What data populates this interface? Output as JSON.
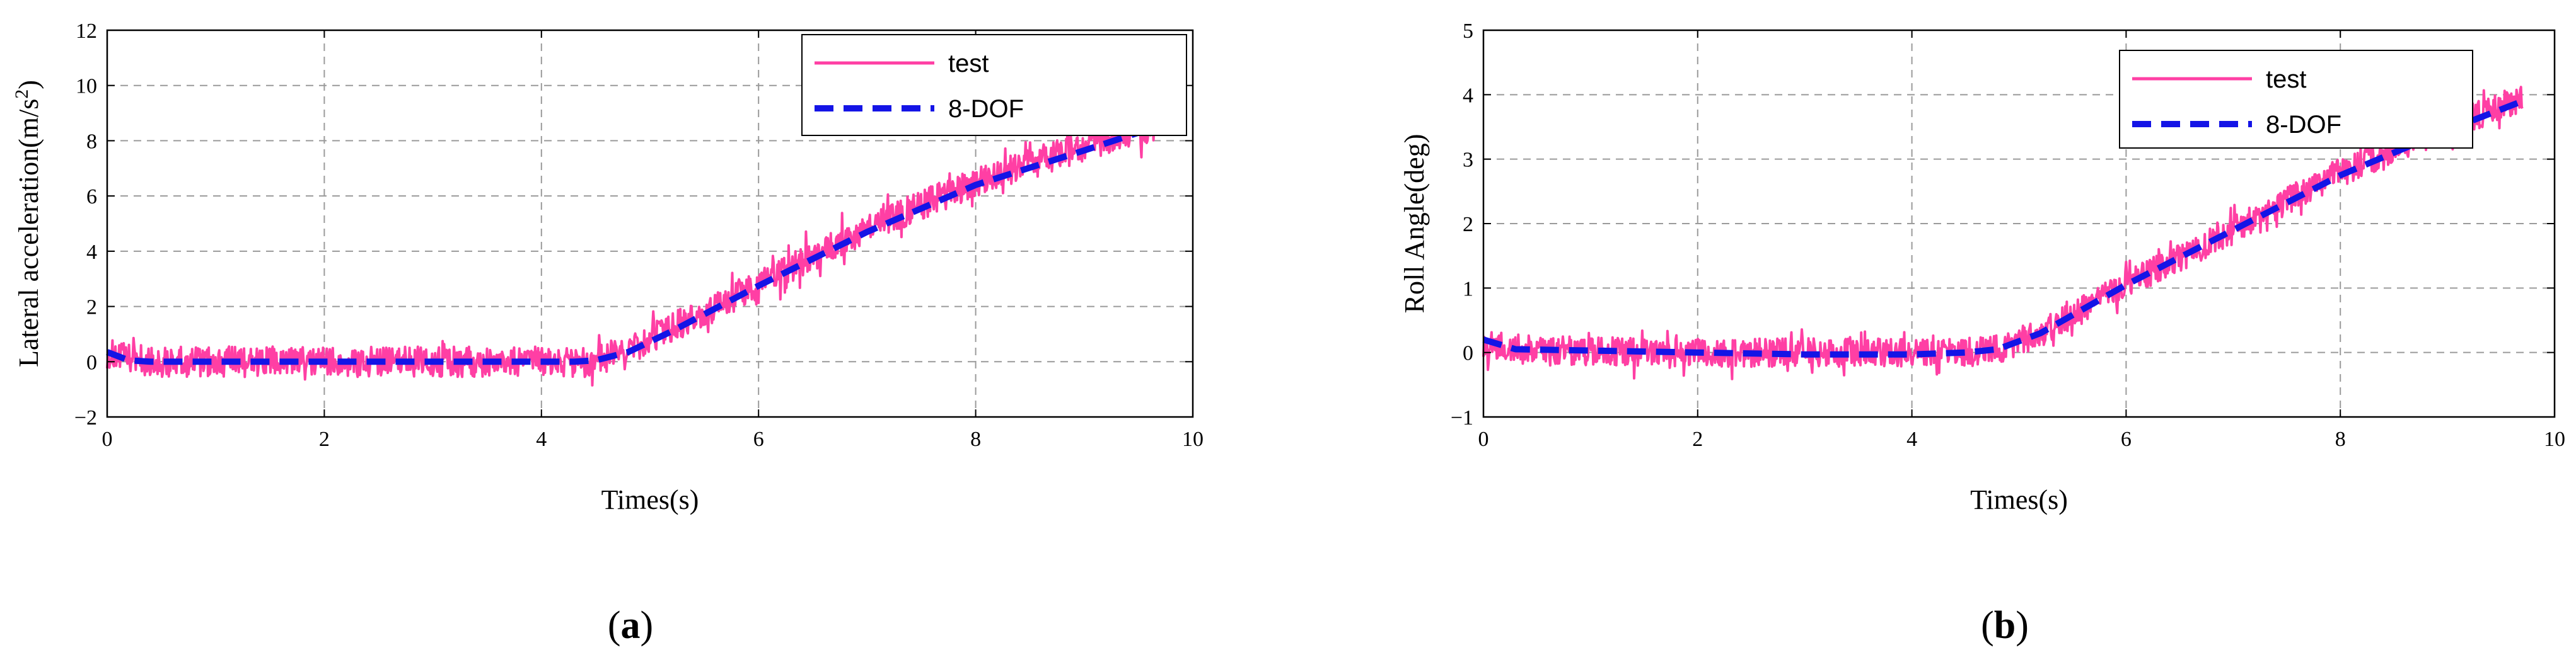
{
  "chart_data": [
    {
      "type": "line",
      "panel_label": "a",
      "title": "",
      "xlabel": "Times(s)",
      "ylabel_base": "Lateral acceleration(m/s",
      "ylabel_sup": "2",
      "ylabel_tail": ")",
      "xlim": [
        0,
        10
      ],
      "ylim": [
        -2,
        12
      ],
      "xticks": [
        "0",
        "2",
        "4",
        "6",
        "8",
        "10"
      ],
      "yticks": [
        "−2",
        "0",
        "2",
        "4",
        "6",
        "8",
        "10",
        "12"
      ],
      "grid": true,
      "legend_position": "top-right",
      "series": [
        {
          "name": "test",
          "color": "#ff3fa4",
          "style": "solid-noisy",
          "noise_amplitude": 0.55,
          "x": [
            0,
            0.2,
            0.4,
            1,
            2,
            3,
            4,
            4.3,
            4.5,
            4.8,
            5.2,
            6,
            7,
            8,
            9,
            9.7
          ],
          "y": [
            0.3,
            0.1,
            0,
            0,
            0,
            0,
            0,
            0,
            0,
            0.4,
            1.2,
            2.8,
            4.8,
            6.5,
            7.8,
            8.6
          ]
        },
        {
          "name": "8-DOF",
          "color": "#1414e6",
          "style": "dashed",
          "x": [
            0,
            0.2,
            0.4,
            1,
            2,
            3,
            4,
            4.3,
            4.5,
            4.8,
            5.2,
            6,
            7,
            8,
            9,
            9.7
          ],
          "y": [
            0.35,
            0.05,
            0,
            0,
            0,
            0,
            0,
            0,
            0.05,
            0.35,
            1.1,
            2.75,
            4.7,
            6.4,
            7.65,
            8.55
          ]
        }
      ]
    },
    {
      "type": "line",
      "panel_label": "b",
      "title": "",
      "xlabel": "Times(s)",
      "ylabel_base": "Roll Angle(deg)",
      "ylabel_sup": "",
      "ylabel_tail": "",
      "xlim": [
        0,
        10
      ],
      "ylim": [
        -1,
        5
      ],
      "xticks": [
        "0",
        "2",
        "4",
        "6",
        "8",
        "10"
      ],
      "yticks": [
        "−1",
        "0",
        "1",
        "2",
        "3",
        "4",
        "5"
      ],
      "grid": true,
      "legend_position": "top-right",
      "series": [
        {
          "name": "test",
          "color": "#ff3fa4",
          "style": "solid-noisy",
          "noise_amplitude": 0.22,
          "x": [
            0,
            0.3,
            1,
            2,
            3,
            4,
            4.5,
            4.8,
            5.2,
            6,
            7,
            8,
            9,
            9.7
          ],
          "y": [
            0.15,
            0.05,
            0.02,
            0,
            0,
            0,
            0,
            0.05,
            0.3,
            1.05,
            1.9,
            2.8,
            3.5,
            3.95
          ]
        },
        {
          "name": "8-DOF",
          "color": "#1414e6",
          "style": "dashed",
          "x": [
            0,
            0.3,
            1,
            2,
            3,
            4,
            4.5,
            4.8,
            5.2,
            6,
            7,
            8,
            9,
            9.7
          ],
          "y": [
            0.2,
            0.05,
            0.03,
            0,
            -0.03,
            -0.03,
            0,
            0.05,
            0.3,
            1.05,
            1.9,
            2.75,
            3.45,
            3.9
          ]
        }
      ]
    }
  ]
}
